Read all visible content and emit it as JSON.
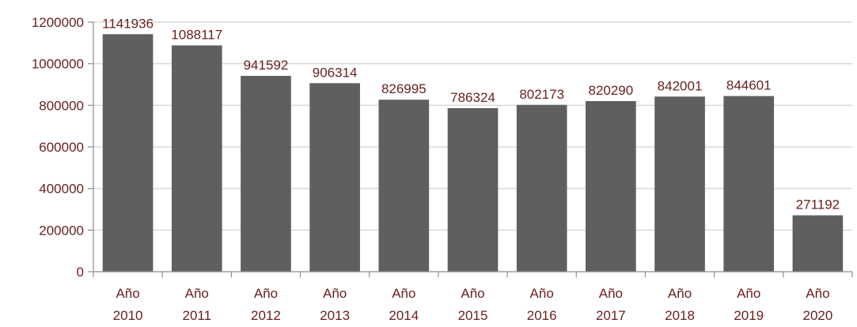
{
  "chart_data": {
    "type": "bar",
    "title": "",
    "xlabel": "",
    "ylabel": "",
    "categories": [
      [
        "Año",
        "2010"
      ],
      [
        "Año",
        "2011"
      ],
      [
        "Año",
        "2012"
      ],
      [
        "Año",
        "2013"
      ],
      [
        "Año",
        "2014"
      ],
      [
        "Año",
        "2015"
      ],
      [
        "Año",
        "2016"
      ],
      [
        "Año",
        "2017"
      ],
      [
        "Año",
        "2018"
      ],
      [
        "Año",
        "2019"
      ],
      [
        "Año",
        "2020"
      ]
    ],
    "values": [
      1141936,
      1088117,
      941592,
      906314,
      826995,
      786324,
      802173,
      820290,
      842001,
      844601,
      271192
    ],
    "ylim": [
      0,
      1200000
    ],
    "yticks": [
      0,
      200000,
      400000,
      600000,
      800000,
      1000000,
      1200000
    ],
    "grid": true,
    "legend": "none",
    "colors": {
      "bar": "#5f5f5f",
      "text": "#6a1e1e",
      "grid": "#d9d9d9",
      "axis": "#8c8c8c"
    }
  }
}
